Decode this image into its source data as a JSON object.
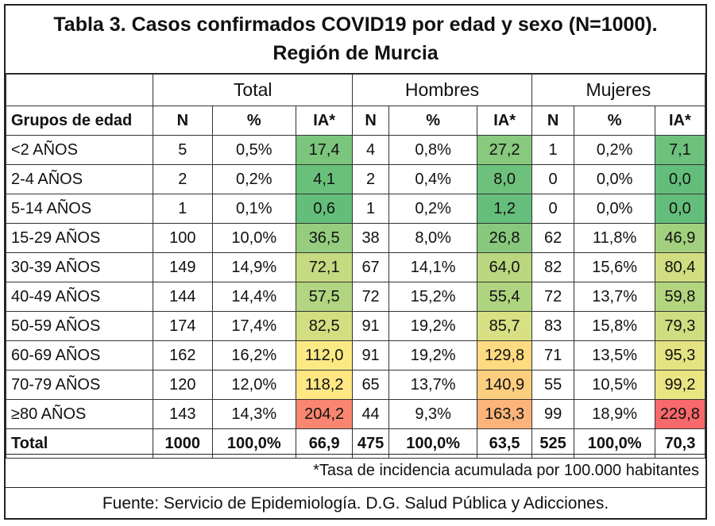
{
  "title": {
    "line1": "Tabla 3. Casos confirmados COVID19 por edad y sexo (N=1000).",
    "line2": "Región de Murcia"
  },
  "group_headers": [
    "Total",
    "Hombres",
    "Mujeres"
  ],
  "column_headers": [
    "Grupos de edad",
    "N",
    "%",
    "IA*",
    "N",
    "%",
    "IA*",
    "N",
    "%",
    "IA*"
  ],
  "rows": [
    {
      "label": "<2 AÑOS",
      "tn": "5",
      "tp": "0,5%",
      "tia": "17,4",
      "hn": "4",
      "hp": "0,8%",
      "hia": "27,2",
      "mn": "1",
      "mp": "0,2%",
      "mia": "7,1"
    },
    {
      "label": "2-4 AÑOS",
      "tn": "2",
      "tp": "0,2%",
      "tia": "4,1",
      "hn": "2",
      "hp": "0,4%",
      "hia": "8,0",
      "mn": "0",
      "mp": "0,0%",
      "mia": "0,0"
    },
    {
      "label": "5-14 AÑOS",
      "tn": "1",
      "tp": "0,1%",
      "tia": "0,6",
      "hn": "1",
      "hp": "0,2%",
      "hia": "1,2",
      "mn": "0",
      "mp": "0,0%",
      "mia": "0,0"
    },
    {
      "label": "15-29 AÑOS",
      "tn": "100",
      "tp": "10,0%",
      "tia": "36,5",
      "hn": "38",
      "hp": "8,0%",
      "hia": "26,8",
      "mn": "62",
      "mp": "11,8%",
      "mia": "46,9"
    },
    {
      "label": "30-39 AÑOS",
      "tn": "149",
      "tp": "14,9%",
      "tia": "72,1",
      "hn": "67",
      "hp": "14,1%",
      "hia": "64,0",
      "mn": "82",
      "mp": "15,6%",
      "mia": "80,4"
    },
    {
      "label": "40-49 AÑOS",
      "tn": "144",
      "tp": "14,4%",
      "tia": "57,5",
      "hn": "72",
      "hp": "15,2%",
      "hia": "55,4",
      "mn": "72",
      "mp": "13,7%",
      "mia": "59,8"
    },
    {
      "label": "50-59 AÑOS",
      "tn": "174",
      "tp": "17,4%",
      "tia": "82,5",
      "hn": "91",
      "hp": "19,2%",
      "hia": "85,7",
      "mn": "83",
      "mp": "15,8%",
      "mia": "79,3"
    },
    {
      "label": "60-69 AÑOS",
      "tn": "162",
      "tp": "16,2%",
      "tia": "112,0",
      "hn": "91",
      "hp": "19,2%",
      "hia": "129,8",
      "mn": "71",
      "mp": "13,5%",
      "mia": "95,3"
    },
    {
      "label": "70-79 AÑOS",
      "tn": "120",
      "tp": "12,0%",
      "tia": "118,2",
      "hn": "65",
      "hp": "13,7%",
      "hia": "140,9",
      "mn": "55",
      "mp": "10,5%",
      "mia": "99,2"
    },
    {
      "label": "≥80 AÑOS",
      "tn": "143",
      "tp": "14,3%",
      "tia": "204,2",
      "hn": "44",
      "hp": "9,3%",
      "hia": "163,3",
      "mn": "99",
      "mp": "18,9%",
      "mia": "229,8"
    }
  ],
  "total_row": {
    "label": "Total",
    "tn": "1000",
    "tp": "100,0%",
    "tia": "66,9",
    "hn": "475",
    "hp": "100,0%",
    "hia": "63,5",
    "mn": "525",
    "mp": "100,0%",
    "mia": "70,3"
  },
  "footnote": "*Tasa de incidencia acumulada por 100.000 habitantes",
  "source": "Fuente: Servicio de Epidemiología. D.G. Salud Pública y Adicciones.",
  "heat_colors": {
    "low": "#63be7b",
    "mid": "#ffeb84",
    "high": "#f8696b",
    "scale_max": 230
  }
}
